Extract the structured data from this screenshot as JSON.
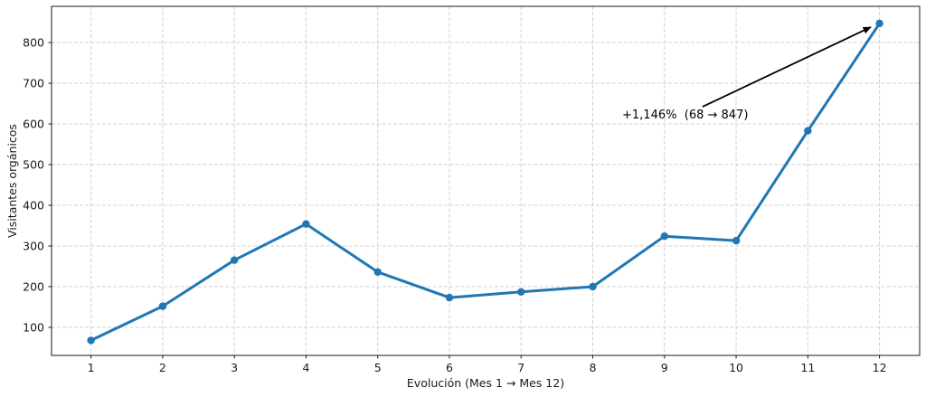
{
  "chart_data": {
    "type": "line",
    "x": [
      1,
      2,
      3,
      4,
      5,
      6,
      7,
      8,
      9,
      10,
      11,
      12
    ],
    "series": [
      {
        "name": "Visitantes orgánicos",
        "color": "#1f77b4",
        "values": [
          68,
          152,
          265,
          354,
          236,
          173,
          187,
          200,
          324,
          313,
          583,
          847
        ]
      }
    ],
    "xlabel": "Evolución (Mes 1 → Mes 12)",
    "ylabel": "Visitantes orgánicos",
    "xticks": [
      1,
      2,
      3,
      4,
      5,
      6,
      7,
      8,
      9,
      10,
      11,
      12
    ],
    "yticks": [
      100,
      200,
      300,
      400,
      500,
      600,
      700,
      800
    ],
    "xlim": [
      0.45,
      12.56
    ],
    "ylim": [
      31,
      889
    ],
    "grid": true,
    "legend": "none",
    "marker": "circle",
    "annotation": {
      "text": "+1,146%  (68 → 847)",
      "text_pos": [
        8.41,
        613
      ],
      "arrow_from": [
        9.53,
        642
      ],
      "arrow_to": [
        11.88,
        838
      ],
      "color": "#000000"
    },
    "colors": {
      "line": "#1f77b4",
      "grid": "#d0d0d0",
      "spine": "#1a1a1a",
      "tick": "#1a1a1a",
      "text": "#1a1a1a",
      "background": "#ffffff"
    }
  }
}
